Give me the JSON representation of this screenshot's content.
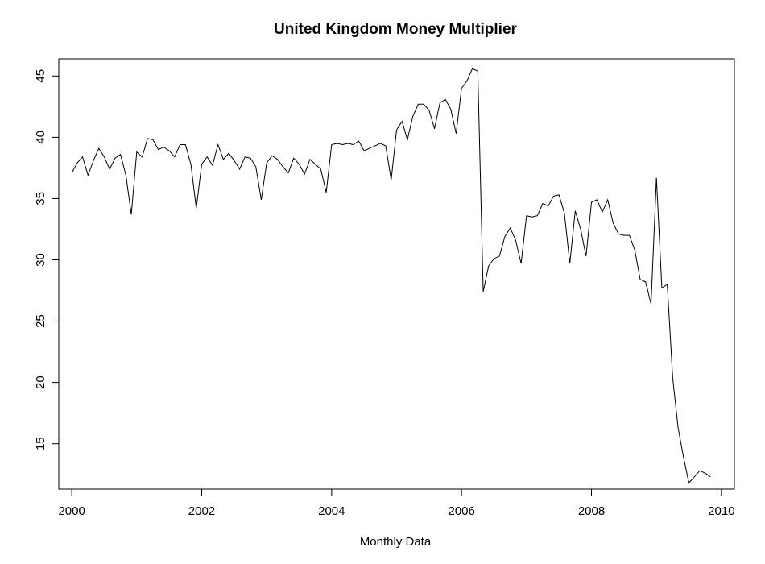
{
  "chart_data": {
    "type": "line",
    "title": "United Kingdom Money Multiplier",
    "xlabel": "Monthly Data",
    "ylabel": "",
    "xlim": [
      1999.8,
      2010.2
    ],
    "ylim": [
      11.3,
      46.4
    ],
    "grid": false,
    "legend": "none",
    "x_ticks": [
      2000,
      2002,
      2004,
      2006,
      2008,
      2010
    ],
    "x_tick_labels": [
      "2000",
      "2002",
      "2004",
      "2006",
      "2008",
      "2010"
    ],
    "y_ticks": [
      15,
      20,
      25,
      30,
      35,
      40,
      45
    ],
    "y_tick_labels": [
      "15",
      "20",
      "25",
      "30",
      "35",
      "40",
      "45"
    ],
    "x_start": 2000,
    "series": [
      {
        "color": "#000000",
        "values": [
          37.1,
          37.9,
          38.4,
          36.9,
          38.1,
          39.1,
          38.4,
          37.4,
          38.3,
          38.6,
          36.9,
          33.7,
          38.8,
          38.4,
          39.9,
          39.8,
          39.0,
          39.2,
          38.9,
          38.4,
          39.4,
          39.4,
          37.8,
          34.2,
          37.8,
          38.4,
          37.7,
          39.4,
          38.2,
          38.7,
          38.1,
          37.4,
          38.4,
          38.3,
          37.6,
          34.9,
          37.9,
          38.5,
          38.2,
          37.6,
          37.1,
          38.3,
          37.8,
          37.0,
          38.2,
          37.8,
          37.4,
          35.5,
          39.4,
          39.5,
          39.4,
          39.5,
          39.4,
          39.7,
          38.9,
          39.1,
          39.3,
          39.5,
          39.3,
          36.5,
          40.6,
          41.3,
          39.8,
          41.7,
          42.7,
          42.7,
          42.2,
          40.7,
          42.8,
          43.1,
          42.3,
          40.3,
          44.0,
          44.6,
          45.6,
          45.4,
          27.4,
          29.5,
          30.1,
          30.3,
          31.9,
          32.6,
          31.6,
          29.7,
          33.6,
          33.5,
          33.6,
          34.6,
          34.4,
          35.2,
          35.3,
          33.8,
          29.7,
          34.0,
          32.5,
          30.3,
          34.7,
          34.9,
          33.9,
          34.9,
          33.0,
          32.1,
          32.0,
          32.0,
          30.8,
          28.4,
          28.2,
          26.4,
          36.7,
          27.7,
          28.0,
          20.4,
          16.3,
          13.9,
          11.8,
          12.3,
          12.8,
          12.6,
          12.3
        ]
      }
    ]
  }
}
